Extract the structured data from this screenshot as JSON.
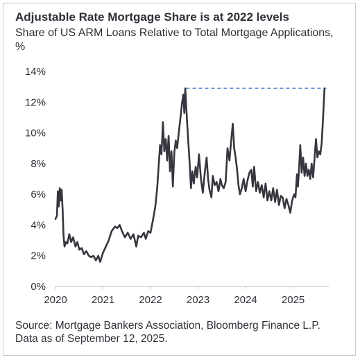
{
  "chart_data": {
    "type": "line",
    "title": "Adjustable Rate Mortgage Share is at 2022 levels",
    "subtitle": "Share of US ARM Loans Relative to Total Mortgage Applications, %",
    "source": "Source: Mortgage Bankers Association, Bloomberg Finance L.P. Data as of September 12, 2025.",
    "xlabel": "",
    "ylabel": "",
    "xlim": [
      2020.0,
      2025.75
    ],
    "ylim": [
      0,
      14
    ],
    "x_ticks": [
      "2020",
      "2021",
      "2022",
      "2023",
      "2024",
      "2025"
    ],
    "y_ticks": [
      "0%",
      "2%",
      "4%",
      "6%",
      "8%",
      "10%",
      "12%",
      "14%"
    ],
    "grid": false,
    "reference_line": {
      "value": 12.9,
      "from": 2022.75,
      "to": 2025.7,
      "style": "dashed",
      "color": "#5b8fd6"
    },
    "series": [
      {
        "color": "#36363f",
        "points": [
          [
            2020.0,
            4.4
          ],
          [
            2020.03,
            4.6
          ],
          [
            2020.05,
            6.2
          ],
          [
            2020.07,
            5.2
          ],
          [
            2020.09,
            6.4
          ],
          [
            2020.11,
            5.6
          ],
          [
            2020.13,
            6.3
          ],
          [
            2020.15,
            5.0
          ],
          [
            2020.17,
            3.3
          ],
          [
            2020.19,
            2.6
          ],
          [
            2020.22,
            2.9
          ],
          [
            2020.25,
            2.8
          ],
          [
            2020.29,
            3.4
          ],
          [
            2020.33,
            2.9
          ],
          [
            2020.37,
            3.2
          ],
          [
            2020.42,
            2.6
          ],
          [
            2020.46,
            2.9
          ],
          [
            2020.5,
            2.4
          ],
          [
            2020.55,
            2.5
          ],
          [
            2020.6,
            2.1
          ],
          [
            2020.65,
            2.3
          ],
          [
            2020.7,
            2.0
          ],
          [
            2020.75,
            1.9
          ],
          [
            2020.8,
            2.0
          ],
          [
            2020.85,
            1.7
          ],
          [
            2020.9,
            2.0
          ],
          [
            2020.94,
            1.6
          ],
          [
            2021.0,
            2.2
          ],
          [
            2021.06,
            2.6
          ],
          [
            2021.12,
            3.0
          ],
          [
            2021.18,
            3.6
          ],
          [
            2021.25,
            3.9
          ],
          [
            2021.3,
            3.8
          ],
          [
            2021.35,
            4.0
          ],
          [
            2021.4,
            3.6
          ],
          [
            2021.46,
            3.2
          ],
          [
            2021.52,
            3.5
          ],
          [
            2021.58,
            3.1
          ],
          [
            2021.64,
            3.4
          ],
          [
            2021.7,
            2.6
          ],
          [
            2021.74,
            3.3
          ],
          [
            2021.8,
            3.2
          ],
          [
            2021.86,
            3.5
          ],
          [
            2021.9,
            3.1
          ],
          [
            2021.95,
            3.6
          ],
          [
            2022.0,
            3.5
          ],
          [
            2022.06,
            4.5
          ],
          [
            2022.1,
            5.2
          ],
          [
            2022.14,
            6.4
          ],
          [
            2022.17,
            7.8
          ],
          [
            2022.2,
            9.2
          ],
          [
            2022.23,
            8.6
          ],
          [
            2022.26,
            10.7
          ],
          [
            2022.29,
            8.8
          ],
          [
            2022.32,
            9.6
          ],
          [
            2022.35,
            8.2
          ],
          [
            2022.38,
            9.8
          ],
          [
            2022.41,
            7.5
          ],
          [
            2022.44,
            8.8
          ],
          [
            2022.47,
            6.5
          ],
          [
            2022.5,
            8.7
          ],
          [
            2022.53,
            9.5
          ],
          [
            2022.56,
            9.0
          ],
          [
            2022.6,
            10.2
          ],
          [
            2022.63,
            11.0
          ],
          [
            2022.66,
            11.9
          ],
          [
            2022.69,
            12.5
          ],
          [
            2022.71,
            11.3
          ],
          [
            2022.73,
            12.9
          ],
          [
            2022.76,
            11.2
          ],
          [
            2022.79,
            9.6
          ],
          [
            2022.82,
            8.2
          ],
          [
            2022.85,
            6.4
          ],
          [
            2022.88,
            7.5
          ],
          [
            2022.91,
            6.7
          ],
          [
            2022.95,
            7.8
          ],
          [
            2022.98,
            7.1
          ],
          [
            2023.02,
            8.6
          ],
          [
            2023.06,
            7.0
          ],
          [
            2023.1,
            6.1
          ],
          [
            2023.14,
            7.4
          ],
          [
            2023.18,
            8.4
          ],
          [
            2023.21,
            7.0
          ],
          [
            2023.24,
            6.3
          ],
          [
            2023.28,
            5.8
          ],
          [
            2023.31,
            7.2
          ],
          [
            2023.35,
            6.6
          ],
          [
            2023.39,
            6.8
          ],
          [
            2023.43,
            6.2
          ],
          [
            2023.47,
            7.0
          ],
          [
            2023.5,
            6.6
          ],
          [
            2023.54,
            6.4
          ],
          [
            2023.58,
            6.8
          ],
          [
            2023.62,
            9.0
          ],
          [
            2023.66,
            8.2
          ],
          [
            2023.7,
            9.6
          ],
          [
            2023.73,
            10.6
          ],
          [
            2023.76,
            9.0
          ],
          [
            2023.79,
            8.4
          ],
          [
            2023.82,
            7.6
          ],
          [
            2023.85,
            6.6
          ],
          [
            2023.88,
            6.0
          ],
          [
            2023.92,
            6.4
          ],
          [
            2023.96,
            7.0
          ],
          [
            2024.0,
            6.2
          ],
          [
            2024.04,
            6.9
          ],
          [
            2024.08,
            7.4
          ],
          [
            2024.12,
            7.6
          ],
          [
            2024.15,
            6.5
          ],
          [
            2024.18,
            7.8
          ],
          [
            2024.22,
            6.2
          ],
          [
            2024.26,
            6.8
          ],
          [
            2024.3,
            6.1
          ],
          [
            2024.34,
            6.6
          ],
          [
            2024.38,
            5.8
          ],
          [
            2024.42,
            6.7
          ],
          [
            2024.46,
            5.6
          ],
          [
            2024.5,
            6.2
          ],
          [
            2024.54,
            5.6
          ],
          [
            2024.58,
            6.4
          ],
          [
            2024.62,
            5.5
          ],
          [
            2024.66,
            6.3
          ],
          [
            2024.7,
            5.3
          ],
          [
            2024.74,
            5.9
          ],
          [
            2024.78,
            5.8
          ],
          [
            2024.82,
            5.1
          ],
          [
            2024.86,
            5.7
          ],
          [
            2024.9,
            5.3
          ],
          [
            2024.94,
            4.8
          ],
          [
            2024.98,
            5.6
          ],
          [
            2025.02,
            6.0
          ],
          [
            2025.05,
            5.8
          ],
          [
            2025.08,
            7.3
          ],
          [
            2025.1,
            6.5
          ],
          [
            2025.12,
            7.4
          ],
          [
            2025.15,
            9.2
          ],
          [
            2025.18,
            7.4
          ],
          [
            2025.21,
            8.4
          ],
          [
            2025.24,
            7.2
          ],
          [
            2025.27,
            8.0
          ],
          [
            2025.3,
            7.2
          ],
          [
            2025.33,
            7.6
          ],
          [
            2025.36,
            7.0
          ],
          [
            2025.39,
            8.0
          ],
          [
            2025.42,
            7.1
          ],
          [
            2025.45,
            8.3
          ],
          [
            2025.48,
            9.6
          ],
          [
            2025.51,
            8.4
          ],
          [
            2025.54,
            8.8
          ],
          [
            2025.57,
            8.6
          ],
          [
            2025.6,
            9.3
          ],
          [
            2025.63,
            11.0
          ],
          [
            2025.66,
            12.9
          ]
        ]
      }
    ]
  }
}
